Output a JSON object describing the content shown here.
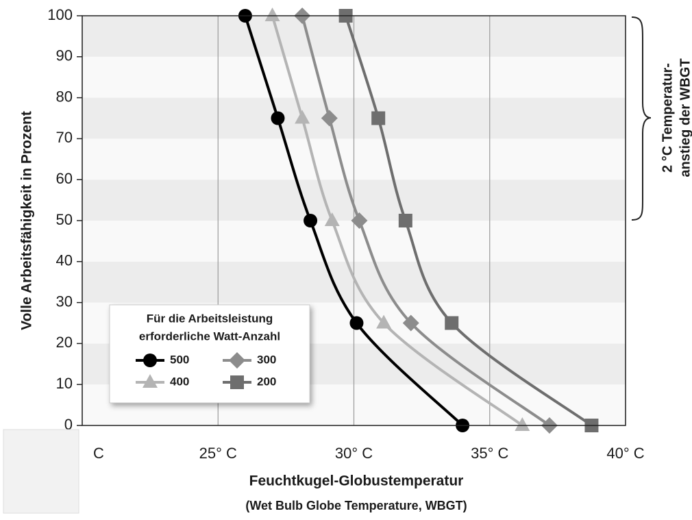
{
  "chart_data": {
    "type": "line",
    "ylabel": "Volle Arbeitsfähigkeit in Prozent",
    "xlabel": [
      "Feuchtkugel-Globustemperatur",
      "(Wet Bulb Globe Temperature, WBGT)"
    ],
    "legend_title": [
      "Für die Arbeitsleistung",
      "erforderliche Watt-Anzahl"
    ],
    "annotation": [
      "2 °C Temperatur-",
      "anstieg der WBGT"
    ],
    "xlim": [
      20,
      40
    ],
    "ylim": [
      0,
      100
    ],
    "xticks": [
      {
        "value": 20,
        "label": "C"
      },
      {
        "value": 25,
        "label": "25° C"
      },
      {
        "value": 30,
        "label": "30° C"
      },
      {
        "value": 35,
        "label": "35° C"
      },
      {
        "value": 40,
        "label": "40° C"
      }
    ],
    "yticks": [
      0,
      10,
      20,
      30,
      40,
      50,
      60,
      70,
      80,
      90,
      100
    ],
    "grid": true,
    "series": [
      {
        "name": "500",
        "color": "#000000",
        "marker": "circle",
        "x": [
          26.0,
          27.2,
          28.4,
          30.1,
          34.0
        ],
        "values": [
          100,
          75,
          50,
          25,
          0
        ]
      },
      {
        "name": "300",
        "color": "#8c8c8c",
        "marker": "diamond",
        "x": [
          28.1,
          29.1,
          30.2,
          32.1,
          37.2
        ],
        "values": [
          100,
          75,
          50,
          25,
          0
        ]
      },
      {
        "name": "400",
        "color": "#b4b4b4",
        "marker": "triangle",
        "x": [
          27.0,
          28.1,
          29.2,
          31.1,
          36.2
        ],
        "values": [
          100,
          75,
          50,
          25,
          0
        ]
      },
      {
        "name": "200",
        "color": "#6e6e6e",
        "marker": "square",
        "x": [
          29.7,
          30.9,
          31.9,
          33.6,
          38.75
        ],
        "values": [
          100,
          75,
          50,
          25,
          0
        ]
      }
    ]
  }
}
